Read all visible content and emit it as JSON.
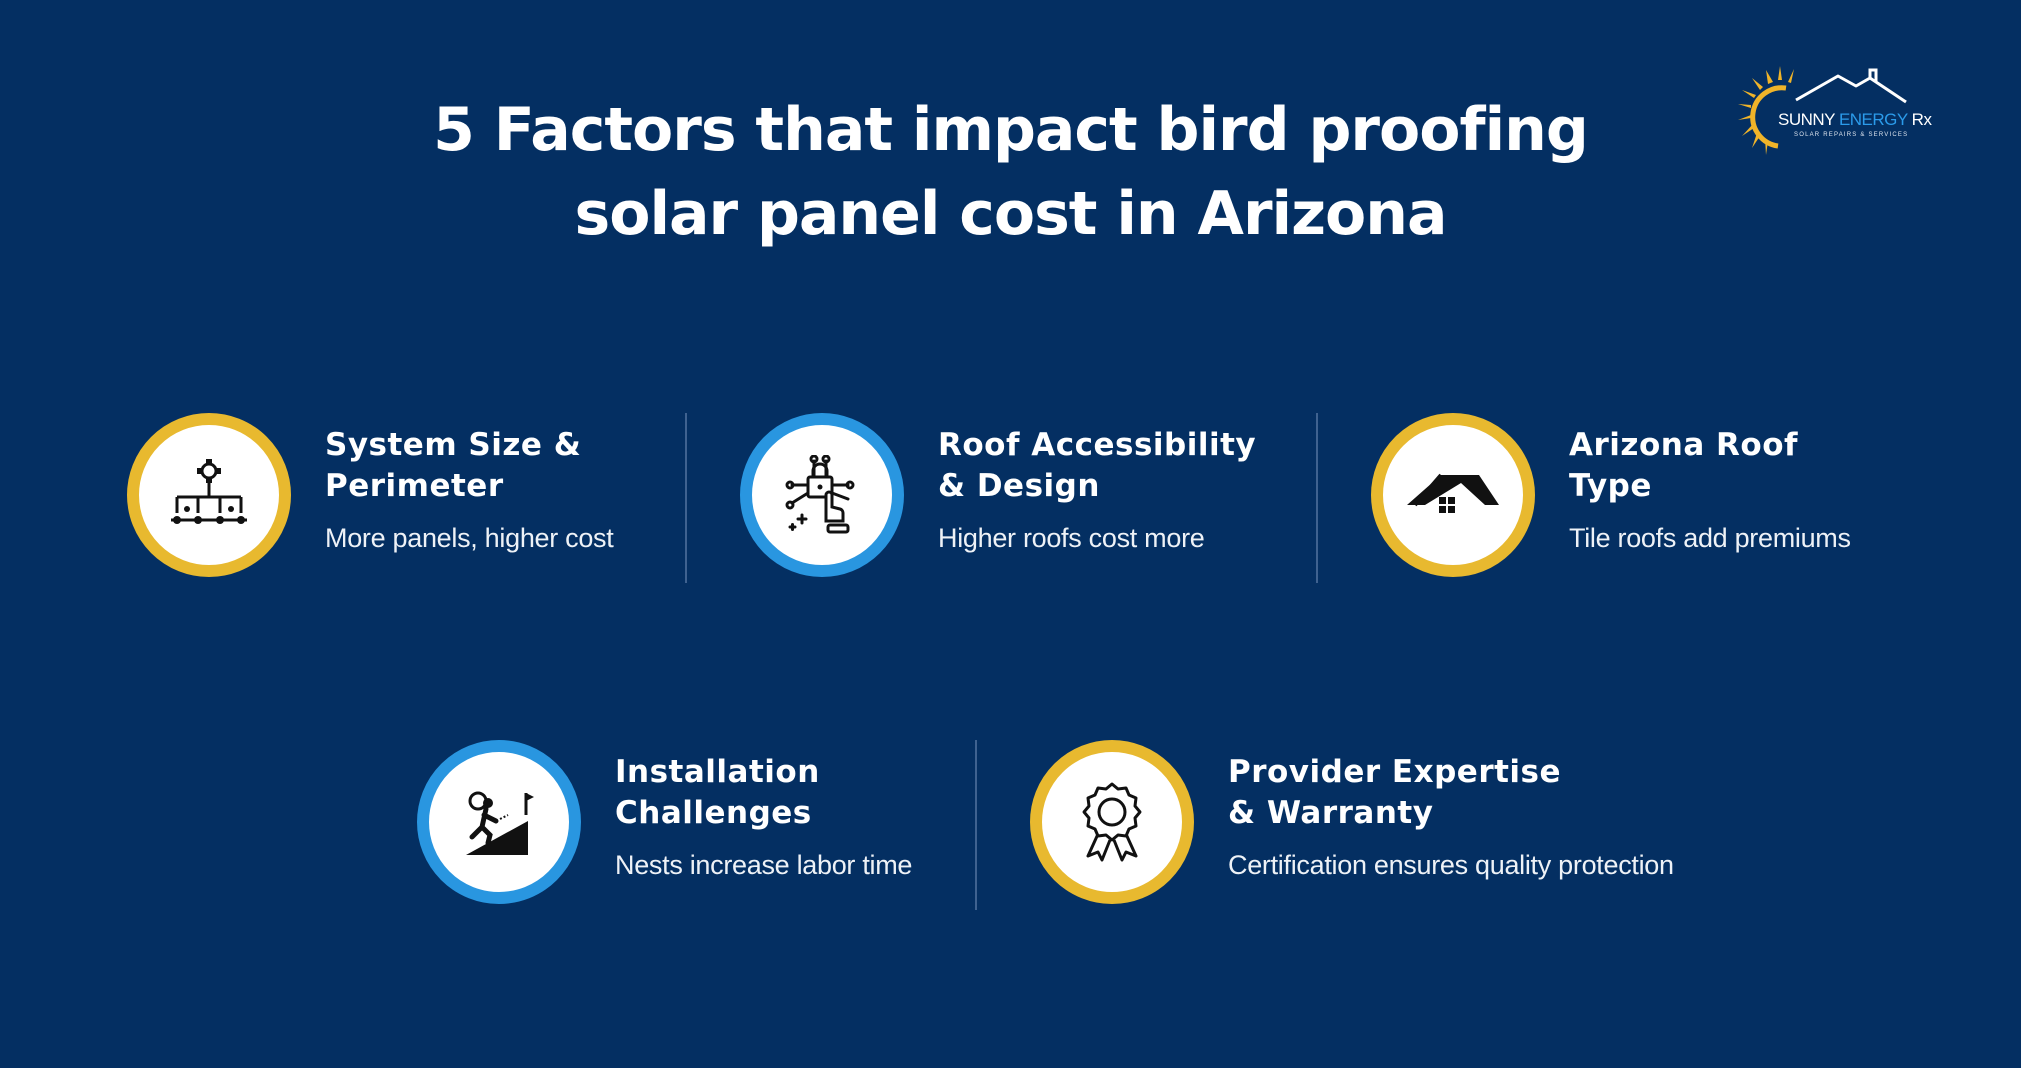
{
  "title": {
    "line1": "5 Factors that impact bird proofing",
    "line2": "solar panel cost in Arizona"
  },
  "logo": {
    "word1": "SUNNY",
    "word2": "ENERGY",
    "word3": "Rx",
    "tagline": "SOLAR REPAIRS & SERVICES"
  },
  "colors": {
    "background": "#042f62",
    "yellow_ring": "#e8b92f",
    "blue_ring": "#2996e0",
    "text": "#ffffff"
  },
  "factors": [
    {
      "title_line1": "System Size &",
      "title_line2": "Perimeter",
      "description": "More panels, higher cost",
      "icon": "network-gear-icon",
      "ring": "yellow"
    },
    {
      "title_line1": "Roof Accessibility",
      "title_line2": "& Design",
      "description": "Higher roofs cost more",
      "icon": "touch-circuit-lock-icon",
      "ring": "blue"
    },
    {
      "title_line1": "Arizona Roof",
      "title_line2": "Type",
      "description": "Tile roofs add premiums",
      "icon": "house-roof-icon",
      "ring": "yellow"
    },
    {
      "title_line1": "Installation",
      "title_line2": "Challenges",
      "description": "Nests increase labor time",
      "icon": "climbing-worker-icon",
      "ring": "blue"
    },
    {
      "title_line1": "Provider Expertise",
      "title_line2": "& Warranty",
      "description": "Certification ensures quality protection",
      "icon": "award-badge-icon",
      "ring": "yellow"
    }
  ]
}
